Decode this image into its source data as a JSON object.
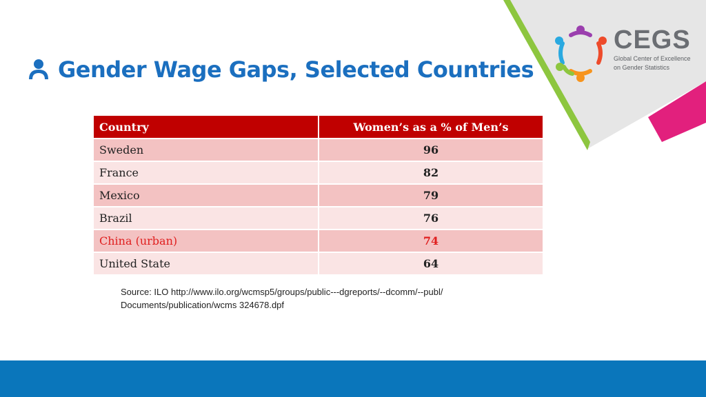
{
  "slide": {
    "title": "Gender Wage Gaps, Selected Countries",
    "title_icon": "person-icon",
    "accent_color": "#1b6fbf",
    "footer_color": "#0a76bb"
  },
  "logo": {
    "name": "CEGS",
    "subtitle_line1": "Global Center of Excellence",
    "subtitle_line2": "on Gender Statistics"
  },
  "table": {
    "headers": [
      "Country",
      "Women’s as a % of Men’s"
    ],
    "header_color": "#c00000",
    "rows": [
      {
        "country": "Sweden",
        "value": "96"
      },
      {
        "country": "France",
        "value": "82"
      },
      {
        "country": "Mexico",
        "value": "79"
      },
      {
        "country": "Brazil",
        "value": "76"
      },
      {
        "country": "China (urban)",
        "value": "74"
      },
      {
        "country": "United State",
        "value": "64"
      }
    ]
  },
  "source": {
    "line1": "Source: ILO http://www.ilo.org/wcmsp5/groups/public---dgreports/--dcomm/--publ/",
    "line2": "Documents/publication/wcms 324678.dpf"
  }
}
